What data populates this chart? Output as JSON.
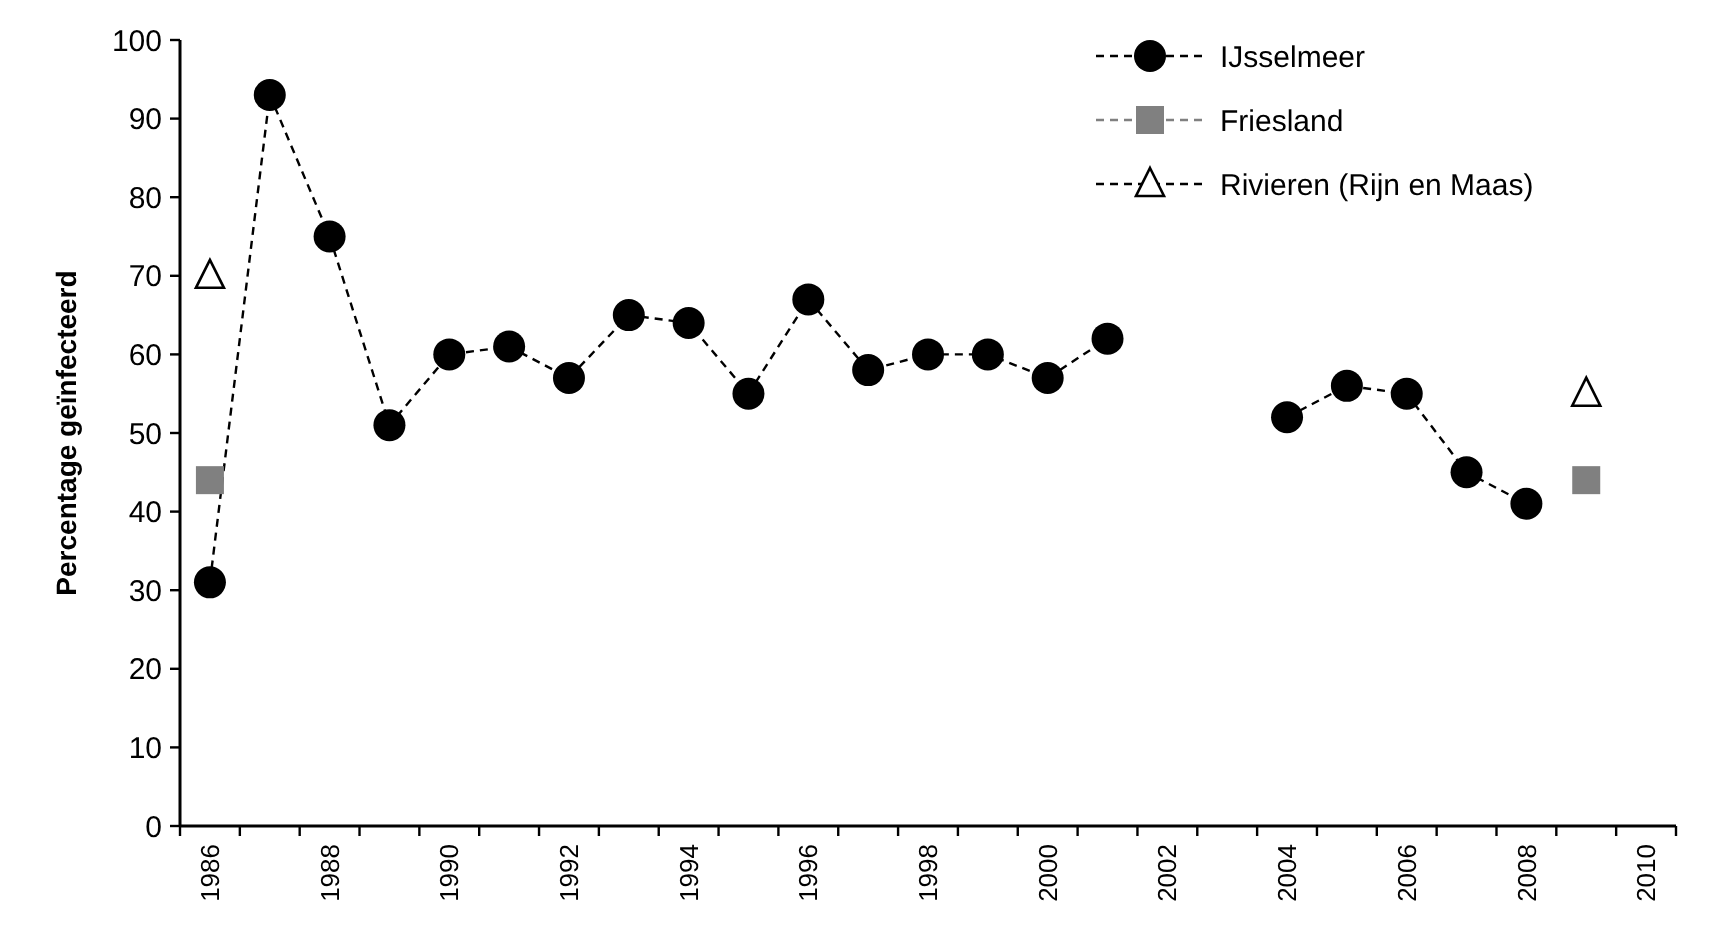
{
  "chart_data": {
    "type": "line",
    "ylabel": "Percentage  geïnfecteerd",
    "categories": [
      "1986",
      null,
      "1988",
      null,
      "1990",
      null,
      "1992",
      null,
      "1994",
      null,
      "1996",
      null,
      "1998",
      null,
      "2000",
      null,
      "2002",
      null,
      "2004",
      null,
      "2006",
      null,
      "2008",
      null,
      "2010"
    ],
    "series": [
      {
        "name": "IJsselmeer",
        "color": "#000000",
        "marker": "circle",
        "values": [
          31,
          93,
          75,
          51,
          60,
          61,
          57,
          65,
          64,
          55,
          67,
          58,
          60,
          60,
          57,
          62,
          null,
          null,
          52,
          56,
          55,
          45,
          41,
          null,
          null
        ]
      },
      {
        "name": "Friesland",
        "color": "#808080",
        "marker": "square",
        "values": [
          44,
          null,
          null,
          null,
          null,
          null,
          null,
          null,
          null,
          null,
          null,
          null,
          null,
          null,
          null,
          null,
          null,
          null,
          null,
          null,
          null,
          null,
          null,
          44,
          null
        ]
      },
      {
        "name": "Rivieren (Rijn en Maas)",
        "color": "#000000",
        "marker": "triangle",
        "values": [
          70,
          null,
          null,
          null,
          null,
          null,
          null,
          null,
          null,
          null,
          null,
          null,
          null,
          null,
          null,
          null,
          null,
          null,
          null,
          null,
          null,
          null,
          null,
          55,
          null
        ]
      }
    ],
    "ylim": [
      0,
      100
    ],
    "yticks": [
      0,
      10,
      20,
      30,
      40,
      50,
      60,
      70,
      80,
      90,
      100
    ],
    "grid": false,
    "legend": "top right",
    "line_style": "dashed"
  }
}
